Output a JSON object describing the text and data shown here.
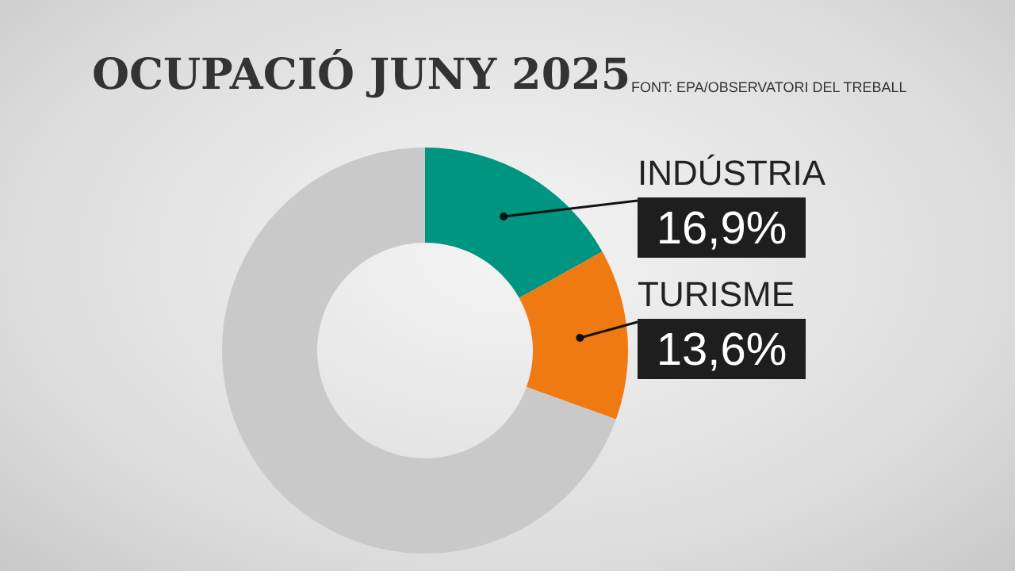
{
  "chart_data": {
    "type": "donut",
    "title": "OCUPACIÓ JUNY 2025",
    "annotations": [
      "FONT: EPA/OBSERVATORI DEL TREBALL"
    ],
    "categories": [
      "INDÚSTRIA",
      "TURISME",
      null
    ],
    "values": [
      16.9,
      13.6,
      69.5
    ],
    "value_labels": [
      "16,9%",
      "13,6%",
      null
    ],
    "colors": [
      "#009580",
      "#ef7a12",
      "#c9c9c9"
    ]
  }
}
